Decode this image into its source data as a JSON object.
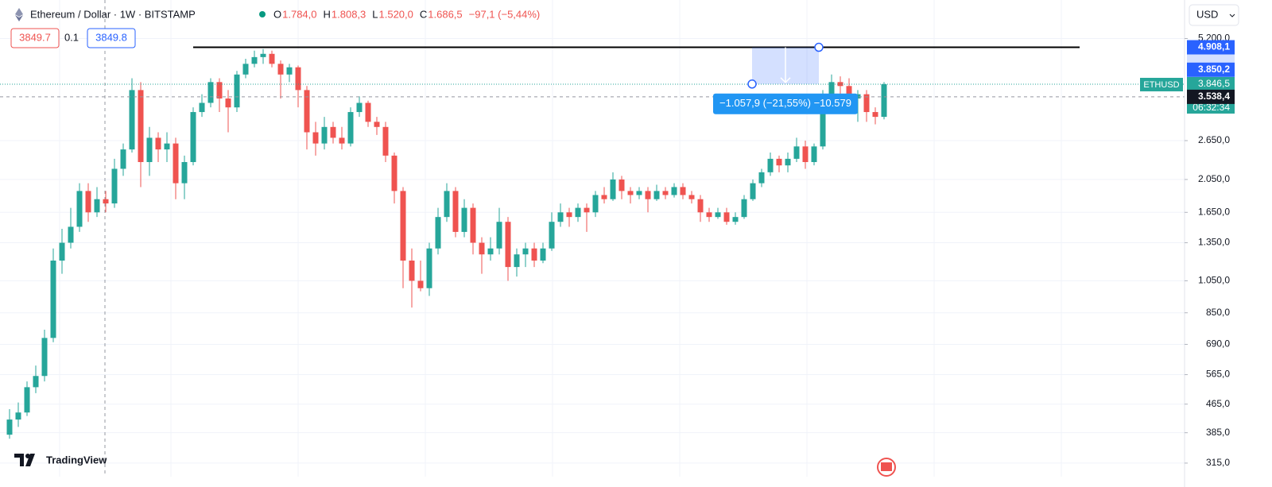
{
  "header": {
    "symbol": "Ethereum / Dollar · 1W · BITSTAMP",
    "ohlc": [
      {
        "label": "O",
        "value": "1.784,0"
      },
      {
        "label": "H",
        "value": "1.808,3"
      },
      {
        "label": "L",
        "value": "1.520,0"
      },
      {
        "label": "C",
        "value": "1.686,5"
      }
    ],
    "change": "−97,1 (−5,44%)"
  },
  "order_panel": {
    "sell": "3849.7",
    "spread": "0.1",
    "buy": "3849.8"
  },
  "currency": "USD",
  "logo": "TradingView",
  "chart_data": {
    "type": "candlestick",
    "log_scale": true,
    "up_color": "#26a69a",
    "down_color": "#ef5350",
    "first_open": 380,
    "close": [
      420,
      440,
      520,
      560,
      720,
      1200,
      1350,
      1500,
      1900,
      1650,
      1800,
      1750,
      2200,
      2500,
      3700,
      2300,
      2700,
      2500,
      2600,
      2000,
      2300,
      3200,
      3400,
      3900,
      3500,
      3300,
      4100,
      4400,
      4600,
      4700,
      4400,
      4100,
      4300,
      3700,
      2800,
      2600,
      2900,
      2700,
      2600,
      3200,
      3400,
      3000,
      2900,
      2400,
      1900,
      1200,
      1050,
      1000,
      1300,
      1600,
      1900,
      1450,
      1700,
      1350,
      1250,
      1300,
      1550,
      1150,
      1250,
      1300,
      1200,
      1300,
      1550,
      1650,
      1600,
      1700,
      1650,
      1850,
      1800,
      2050,
      1900,
      1850,
      1900,
      1800,
      1900,
      1850,
      1950,
      1850,
      1800,
      1650,
      1600,
      1650,
      1550,
      1600,
      1800,
      2000,
      2150,
      2350,
      2250,
      2350,
      2550,
      2300,
      2550,
      3600,
      3900,
      3800,
      3500,
      3600,
      3200,
      3100,
      3846.5
    ],
    "high": [
      450,
      470,
      540,
      600,
      760,
      1300,
      1480,
      1700,
      2000,
      2000,
      1950,
      1900,
      2350,
      2600,
      4000,
      3900,
      2900,
      2800,
      2800,
      2700,
      2400,
      3300,
      3600,
      4000,
      4000,
      3700,
      4200,
      4550,
      4800,
      4850,
      4800,
      4500,
      4400,
      4350,
      3800,
      3000,
      3100,
      3000,
      2900,
      3300,
      3550,
      3450,
      3100,
      3000,
      2450,
      1950,
      1300,
      1200,
      1350,
      1700,
      2000,
      1950,
      1800,
      1750,
      1400,
      1400,
      1700,
      1600,
      1300,
      1350,
      1350,
      1350,
      1650,
      1750,
      1700,
      1750,
      1750,
      1900,
      1950,
      2150,
      2100,
      1950,
      1950,
      1950,
      1980,
      1950,
      2000,
      2000,
      1900,
      1850,
      1700,
      1700,
      1700,
      1650,
      1850,
      2050,
      2200,
      2450,
      2400,
      2450,
      2700,
      2650,
      2600,
      3700,
      4100,
      4050,
      4000,
      3700,
      3700,
      3300,
      3900
    ],
    "low": [
      370,
      400,
      430,
      500,
      540,
      700,
      1100,
      1300,
      1450,
      1550,
      1600,
      1650,
      1700,
      2100,
      2450,
      1950,
      2100,
      2300,
      2300,
      1800,
      1800,
      2250,
      3100,
      3300,
      3200,
      2800,
      3200,
      4000,
      4300,
      4400,
      4300,
      3500,
      3900,
      3300,
      2500,
      2400,
      2500,
      2600,
      2500,
      2550,
      3100,
      2900,
      2750,
      2300,
      1750,
      1000,
      880,
      980,
      950,
      1250,
      1550,
      1400,
      1400,
      1250,
      1100,
      1200,
      1250,
      1050,
      1080,
      1150,
      1150,
      1180,
      1280,
      1500,
      1500,
      1550,
      1450,
      1600,
      1750,
      1780,
      1800,
      1750,
      1800,
      1650,
      1780,
      1800,
      1820,
      1800,
      1750,
      1550,
      1550,
      1580,
      1520,
      1520,
      1580,
      1780,
      1950,
      2100,
      2150,
      2150,
      2300,
      2200,
      2250,
      2500,
      3500,
      3600,
      3400,
      3000,
      3000,
      2950,
      3050
    ],
    "ylim": [
      288,
      6707
    ],
    "yticks": [
      {
        "value": 315,
        "label": "315,0"
      },
      {
        "value": 385,
        "label": "385,0"
      },
      {
        "value": 465,
        "label": "465,0"
      },
      {
        "value": 565,
        "label": "565,0"
      },
      {
        "value": 690,
        "label": "690,0"
      },
      {
        "value": 850,
        "label": "850,0"
      },
      {
        "value": 1050,
        "label": "1.050,0"
      },
      {
        "value": 1350,
        "label": "1.350,0"
      },
      {
        "value": 1650,
        "label": "1.650,0"
      },
      {
        "value": 2050,
        "label": "2.050,0"
      },
      {
        "value": 2650,
        "label": "2.650,0"
      },
      {
        "value": 5200,
        "label": "5.200,0"
      }
    ],
    "horizontal_line": {
      "value": 4908.1,
      "label": "4.908,1"
    },
    "measure": {
      "from": {
        "value": 3850.2,
        "label": "3.850,2"
      },
      "label": "−1.057,9 (−21,55%) −10.579"
    },
    "last_price": {
      "value": 3846.5,
      "label": "3.846,5",
      "symbol": "ETHUSD",
      "countdown": "06:32:34"
    },
    "crosshair": {
      "value": 3538.4,
      "label": "3.538,4"
    }
  }
}
